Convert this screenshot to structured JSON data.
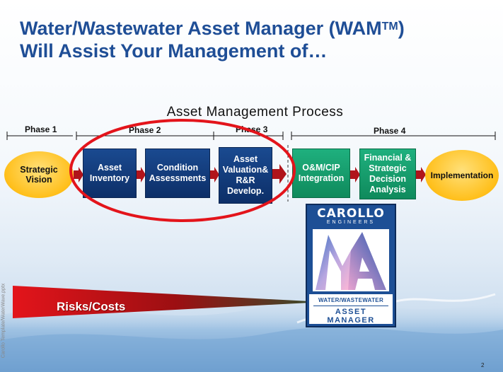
{
  "title": {
    "line1_main": "Water/Wastewater Asset Manager (WAM",
    "line1_sup": "TM",
    "line1_end": ")",
    "line2": "Will Assist Your Management of…"
  },
  "process_title": "Asset Management Process",
  "phases": [
    "Phase 1",
    "Phase 2",
    "Phase 3",
    "Phase 4"
  ],
  "steps": {
    "strategic_vision": [
      "Strategic",
      "Vision"
    ],
    "asset_inventory": [
      "Asset",
      "Inventory"
    ],
    "condition_assessments": [
      "Condition",
      "Assessments"
    ],
    "asset_valuation": [
      "Asset",
      "Valuation&",
      "R&R",
      "Develop."
    ],
    "om_cip": [
      "O&M/CIP",
      "Integration"
    ],
    "financial": [
      "Financial &",
      "Strategic",
      "Decision",
      "Analysis"
    ],
    "implementation": "Implementation"
  },
  "logo": {
    "brand": "CAROLLO",
    "sub": "ENGINEERS",
    "line1": "WATER/WASTEWATER",
    "line2": "ASSET MANAGER"
  },
  "risk_label": "Risks/Costs",
  "side_text": "Carollo Template/WaterWave.pptx",
  "page_number": "2",
  "colors": {
    "title_blue": "#1f4e96",
    "step_blue": "#0d2f68",
    "step_green": "#0f8a5c",
    "oval_yellow": "#ffbf1a",
    "highlight_red": "#e3141b",
    "arrow_red": "#b0141b"
  }
}
